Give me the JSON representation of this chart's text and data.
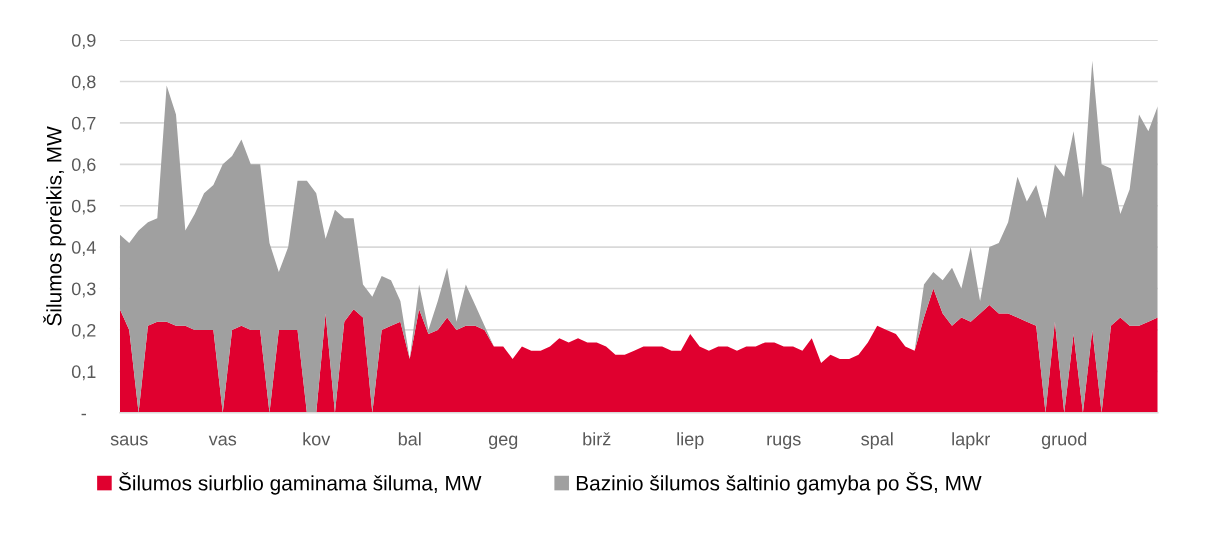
{
  "chart_data": {
    "type": "area",
    "stacked": true,
    "ylabel": "Šilumos poreikis, MW",
    "categories": [
      null,
      "saus",
      null,
      null,
      null,
      null,
      null,
      null,
      null,
      null,
      null,
      "vas",
      null,
      null,
      null,
      null,
      null,
      null,
      null,
      null,
      null,
      "kov",
      null,
      null,
      null,
      null,
      null,
      null,
      null,
      null,
      null,
      "bal",
      null,
      null,
      null,
      null,
      null,
      null,
      null,
      null,
      null,
      "geg",
      null,
      null,
      null,
      null,
      null,
      null,
      null,
      null,
      null,
      "birž",
      null,
      null,
      null,
      null,
      null,
      null,
      null,
      null,
      null,
      "liep",
      null,
      null,
      null,
      null,
      null,
      null,
      null,
      null,
      null,
      "rugs",
      null,
      null,
      null,
      null,
      null,
      null,
      null,
      null,
      null,
      "spal",
      null,
      null,
      null,
      null,
      null,
      null,
      null,
      null,
      null,
      "lapkr",
      null,
      null,
      null,
      null,
      null,
      null,
      null,
      null,
      null,
      "gruod",
      null,
      null,
      null,
      null,
      null,
      null,
      null,
      null,
      null,
      null
    ],
    "series": [
      {
        "name": "Šilumos siurblio gaminama šiluma, MW",
        "color": "#e0002f",
        "values": [
          0.25,
          0.2,
          0,
          0.21,
          0.22,
          0.22,
          0.21,
          0.21,
          0.2,
          0.2,
          0.2,
          0,
          0.2,
          0.21,
          0.2,
          0.2,
          0,
          0.2,
          0.2,
          0.2,
          0,
          0,
          0.24,
          0,
          0.22,
          0.25,
          0.23,
          0,
          0.2,
          0.21,
          0.22,
          0.13,
          0.25,
          0.19,
          0.2,
          0.23,
          0.2,
          0.21,
          0.21,
          0.2,
          0.16,
          0.16,
          0.13,
          0.16,
          0.15,
          0.15,
          0.16,
          0.18,
          0.17,
          0.18,
          0.17,
          0.17,
          0.16,
          0.14,
          0.14,
          0.15,
          0.16,
          0.16,
          0.16,
          0.15,
          0.15,
          0.19,
          0.16,
          0.15,
          0.16,
          0.16,
          0.15,
          0.16,
          0.16,
          0.17,
          0.17,
          0.16,
          0.16,
          0.15,
          0.18,
          0.12,
          0.14,
          0.13,
          0.13,
          0.14,
          0.17,
          0.21,
          0.2,
          0.19,
          0.16,
          0.15,
          0.23,
          0.3,
          0.24,
          0.21,
          0.23,
          0.22,
          0.24,
          0.26,
          0.24,
          0.24,
          0.23,
          0.22,
          0.21,
          0,
          0.22,
          0,
          0.19,
          0,
          0.2,
          0,
          0.21,
          0.23,
          0.21,
          0.21,
          0.22,
          0.23
        ]
      },
      {
        "name": "Bazinio šilumos šaltinio gamyba po ŠS, MW",
        "color": "#a0a0a0",
        "values": [
          0.18,
          0.21,
          0.44,
          0.25,
          0.25,
          0.57,
          0.51,
          0.23,
          0.28,
          0.33,
          0.35,
          0.6,
          0.42,
          0.45,
          0.4,
          0.4,
          0.41,
          0.14,
          0.2,
          0.36,
          0.56,
          0.53,
          0.18,
          0.49,
          0.25,
          0.22,
          0.08,
          0.28,
          0.13,
          0.11,
          0.05,
          0,
          0.06,
          0.01,
          0.07,
          0.12,
          0.02,
          0.1,
          0.05,
          0.01,
          0,
          0,
          0,
          0,
          0,
          0,
          0,
          0,
          0,
          0,
          0,
          0,
          0,
          0,
          0,
          0,
          0,
          0,
          0,
          0,
          0,
          0,
          0,
          0,
          0,
          0,
          0,
          0,
          0,
          0,
          0,
          0,
          0,
          0,
          0,
          0,
          0,
          0,
          0,
          0,
          0,
          0,
          0,
          0,
          0,
          0,
          0.08,
          0.04,
          0.08,
          0.14,
          0.07,
          0.18,
          0.03,
          0.14,
          0.17,
          0.22,
          0.34,
          0.29,
          0.34,
          0.47,
          0.38,
          0.57,
          0.49,
          0.52,
          0.65,
          0.6,
          0.38,
          0.25,
          0.33,
          0.51,
          0.46,
          0.51
        ]
      }
    ],
    "ylim": [
      0,
      0.9
    ],
    "yticks": [
      {
        "value": 0,
        "label": "-"
      },
      {
        "value": 0.1,
        "label": "0,1"
      },
      {
        "value": 0.2,
        "label": "0,2"
      },
      {
        "value": 0.3,
        "label": "0,3"
      },
      {
        "value": 0.4,
        "label": "0,4"
      },
      {
        "value": 0.5,
        "label": "0,5"
      },
      {
        "value": 0.6,
        "label": "0,6"
      },
      {
        "value": 0.7,
        "label": "0,7"
      },
      {
        "value": 0.8,
        "label": "0,8"
      },
      {
        "value": 0.9,
        "label": "0,9"
      }
    ],
    "grid": "y",
    "legend": "bottom"
  }
}
